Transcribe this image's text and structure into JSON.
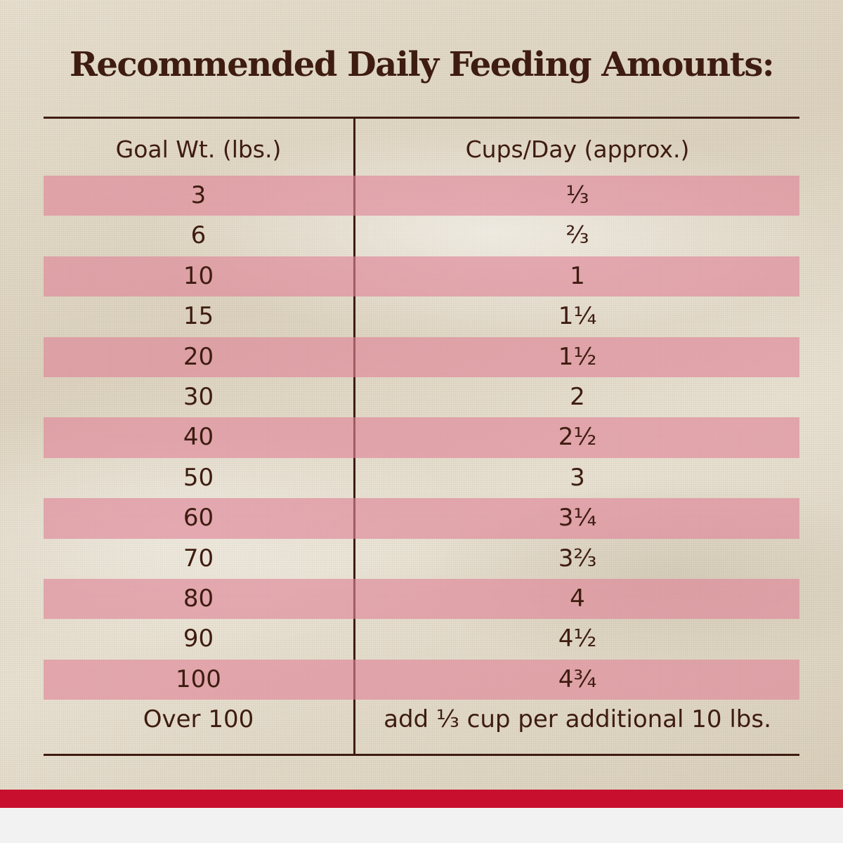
{
  "title": "Recommended Daily Feeding Amounts:",
  "table": {
    "headers": {
      "weight": "Goal Wt. (lbs.)",
      "cups": "Cups/Day (approx.)"
    },
    "rows": [
      {
        "weight": "3",
        "cups": "⅓"
      },
      {
        "weight": "6",
        "cups": "⅔"
      },
      {
        "weight": "10",
        "cups": "1"
      },
      {
        "weight": "15",
        "cups": "1¼"
      },
      {
        "weight": "20",
        "cups": "1½"
      },
      {
        "weight": "30",
        "cups": "2"
      },
      {
        "weight": "40",
        "cups": "2½"
      },
      {
        "weight": "50",
        "cups": "3"
      },
      {
        "weight": "60",
        "cups": "3¼"
      },
      {
        "weight": "70",
        "cups": "3⅔"
      },
      {
        "weight": "80",
        "cups": "4"
      },
      {
        "weight": "90",
        "cups": "4½"
      },
      {
        "weight": "100",
        "cups": "4¾"
      },
      {
        "weight": "Over 100",
        "cups": "add ⅓ cup per additional 10 lbs."
      }
    ]
  },
  "colors": {
    "text": "#3e1c10",
    "stripe": "#de8296",
    "accent_band": "#c8102e",
    "bottom_band": "#f2f2f2"
  }
}
